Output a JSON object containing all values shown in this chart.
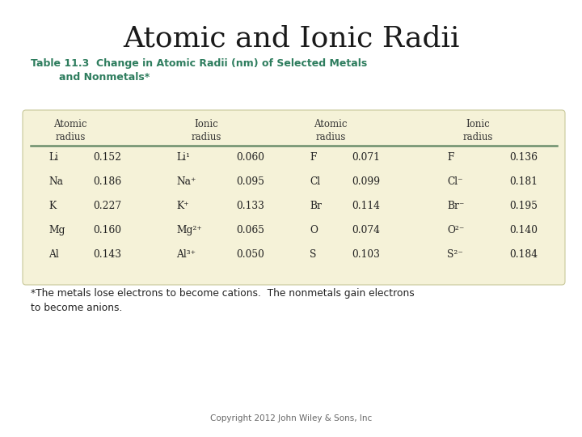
{
  "title": "Atomic and Ionic Radii",
  "title_fontsize": 26,
  "title_color": "#1a1a1a",
  "table_title_line1": "Table 11.3  Change in Atomic Radii (nm) of Selected Metals",
  "table_title_line2": "        and Nonmetals*",
  "table_title_color": "#2e7d5e",
  "table_bg_color": "#f5f2d8",
  "header_line_color": "#6b8e6b",
  "col_headers": [
    "Atomic\nradius",
    "Ionic\nradius",
    "Atomic\nradius",
    "Ionic\nradius"
  ],
  "metals": [
    {
      "elem": "Li",
      "atomic": "0.152",
      "ion": "Li¹",
      "ion_r": "0.060"
    },
    {
      "elem": "Na",
      "atomic": "0.186",
      "ion": "Na⁺",
      "ion_r": "0.095"
    },
    {
      "elem": "K",
      "atomic": "0.227",
      "ion": "K⁺",
      "ion_r": "0.133"
    },
    {
      "elem": "Mg",
      "atomic": "0.160",
      "ion": "Mg²⁺",
      "ion_r": "0.065"
    },
    {
      "elem": "Al",
      "atomic": "0.143",
      "ion": "Al³⁺",
      "ion_r": "0.050"
    }
  ],
  "nonmetals": [
    {
      "elem": "F",
      "atomic": "0.071",
      "ion": "F",
      "ion_r": "0.136"
    },
    {
      "elem": "Cl",
      "atomic": "0.099",
      "ion": "Cl⁻",
      "ion_r": "0.181"
    },
    {
      "elem": "Br",
      "atomic": "0.114",
      "ion": "Br⁻",
      "ion_r": "0.195"
    },
    {
      "elem": "O",
      "atomic": "0.074",
      "ion": "O²⁻",
      "ion_r": "0.140"
    },
    {
      "elem": "S",
      "atomic": "0.103",
      "ion": "S²⁻",
      "ion_r": "0.184"
    }
  ],
  "footnote": "*The metals lose electrons to become cations.  The nonmetals gain electrons\nto become anions.",
  "copyright": "Copyright 2012 John Wiley & Sons, Inc",
  "background_color": "#ffffff"
}
